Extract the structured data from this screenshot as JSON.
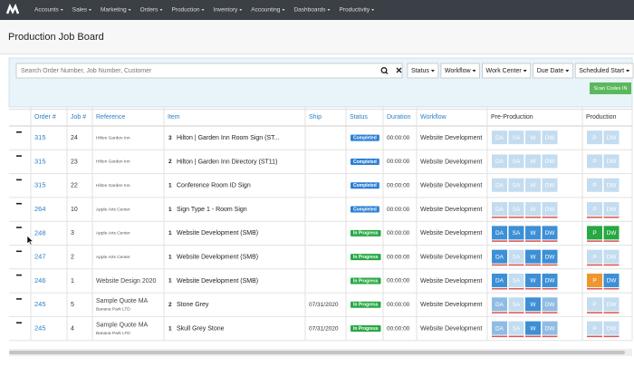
{
  "nav": {
    "items": [
      "Accounts",
      "Sales",
      "Marketing",
      "Orders",
      "Production",
      "Inventory",
      "Accounting",
      "Dashboards",
      "Productivity"
    ]
  },
  "header": {
    "title": "Production Job Board"
  },
  "filters": {
    "search_placeholder": "Search Order Number, Job Number, Customer",
    "buttons": [
      "Status",
      "Workflow",
      "Work Center",
      "Due Date",
      "Scheduled Start"
    ],
    "scan": "Scan Codes IN"
  },
  "stages": {
    "pre": [
      "DA",
      "SA",
      "W",
      "DW"
    ],
    "prod": [
      "P",
      "DW"
    ]
  },
  "table": {
    "headers": [
      "Order #",
      "Job #",
      "Reference",
      "Item",
      "Ship",
      "Status",
      "Duration",
      "Workflow",
      "Pre-Production",
      "Production"
    ],
    "rows": [
      {
        "order": "315",
        "job": "24",
        "customer": "Hilton Garden Inn",
        "qty": "3",
        "item": "Hilton | Garden Inn Room Sign (ST...",
        "status": "Completed",
        "status_color": "#2b7fd6",
        "duration": "00:00:00",
        "workflow": "Website Development",
        "pre_colors": [
          "#c3dcf0",
          "#c3dcf0",
          "#c3dcf0",
          "#c3dcf0"
        ],
        "prod_colors": [
          "#c3dcf0",
          "#c3dcf0"
        ],
        "underline": false
      },
      {
        "order": "315",
        "job": "23",
        "customer": "Hilton Garden Inn",
        "qty": "2",
        "item": "Hilton | Garden Inn Directory (ST11)",
        "status": "Completed",
        "status_color": "#2b7fd6",
        "duration": "00:00:00",
        "workflow": "Website Development",
        "pre_colors": [
          "#c3dcf0",
          "#c3dcf0",
          "#c3dcf0",
          "#c3dcf0"
        ],
        "prod_colors": [
          "#c3dcf0",
          "#c3dcf0"
        ],
        "underline": false
      },
      {
        "order": "315",
        "job": "22",
        "customer": "Hilton Garden Inn",
        "qty": "1",
        "item": "Conference Room ID Sign",
        "status": "Completed",
        "status_color": "#2b7fd6",
        "duration": "00:00:00",
        "workflow": "Website Development",
        "pre_colors": [
          "#c3dcf0",
          "#c3dcf0",
          "#c3dcf0",
          "#c3dcf0"
        ],
        "prod_colors": [
          "#c3dcf0",
          "#c3dcf0"
        ],
        "underline": false
      },
      {
        "order": "264",
        "job": "10",
        "customer": "Apple Arts Center",
        "qty": "1",
        "item": "Sign Type 1 - Room Sign",
        "status": "Completed",
        "status_color": "#2b7fd6",
        "duration": "00:00:00",
        "workflow": "Website Development",
        "pre_colors": [
          "#c3dcf0",
          "#c3dcf0",
          "#c3dcf0",
          "#c3dcf0"
        ],
        "prod_colors": [
          "#c3dcf0",
          "#c3dcf0"
        ],
        "underline": true
      },
      {
        "order": "248",
        "job": "3",
        "customer": "Apple Arts Center",
        "qty": "1",
        "item": "Website Development (SMB)",
        "status": "In Progress",
        "status_color": "#28a745",
        "duration": "00:00:00",
        "workflow": "Website Development",
        "pre_colors": [
          "#3d8fd6",
          "#3d8fd6",
          "#3d8fd6",
          "#3d8fd6"
        ],
        "prod_colors": [
          "#27a844",
          "#27a844"
        ],
        "underline": true
      },
      {
        "order": "247",
        "job": "2",
        "customer": "Apple Arts Center",
        "qty": "1",
        "item": "Website Development (SMB)",
        "status": "In Progress",
        "status_color": "#28a745",
        "duration": "00:00:00",
        "workflow": "Website Development",
        "pre_colors": [
          "#3d8fd6",
          "#c3dcf0",
          "#3d8fd6",
          "#3d8fd6"
        ],
        "prod_colors": [
          "#c3dcf0",
          "#c3dcf0"
        ],
        "underline": true
      },
      {
        "order": "246",
        "job": "1",
        "reference": "Website Design 2020",
        "qty": "1",
        "item": "Website Development (SMB)",
        "status": "In Progress",
        "status_color": "#28a745",
        "duration": "00:00:00",
        "workflow": "Website Development",
        "pre_colors": [
          "#3d8fd6",
          "#c3dcf0",
          "#3d8fd6",
          "#3d8fd6"
        ],
        "prod_colors": [
          "#f0962e",
          "#3d8fd6"
        ],
        "underline": true
      },
      {
        "order": "245",
        "job": "5",
        "reference": "Sample Quote MA",
        "customer": "Banana Park LTD",
        "qty": "2",
        "item": "Stone Grey",
        "ship": "07/31/2020",
        "status": "In Progress",
        "status_color": "#28a745",
        "duration": "00:00:00",
        "workflow": "Website Development",
        "pre_colors": [
          "#8fbce4",
          "#c3dcf0",
          "#3d8fd6",
          "#8fbce4"
        ],
        "prod_colors": [
          "#c3dcf0",
          "#c3dcf0"
        ],
        "underline": true
      },
      {
        "order": "245",
        "job": "4",
        "reference": "Sample Quote MA",
        "customer": "Banana Park LTD",
        "qty": "1",
        "item": "Skull Grey Stone",
        "ship": "07/31/2020",
        "status": "In Progress",
        "status_color": "#28a745",
        "duration": "00:00:00",
        "workflow": "Website Development",
        "pre_colors": [
          "#8fbce4",
          "#c3dcf0",
          "#3d8fd6",
          "#8fbce4"
        ],
        "prod_colors": [
          "#c3dcf0",
          "#c3dcf0"
        ],
        "underline": true
      }
    ]
  }
}
